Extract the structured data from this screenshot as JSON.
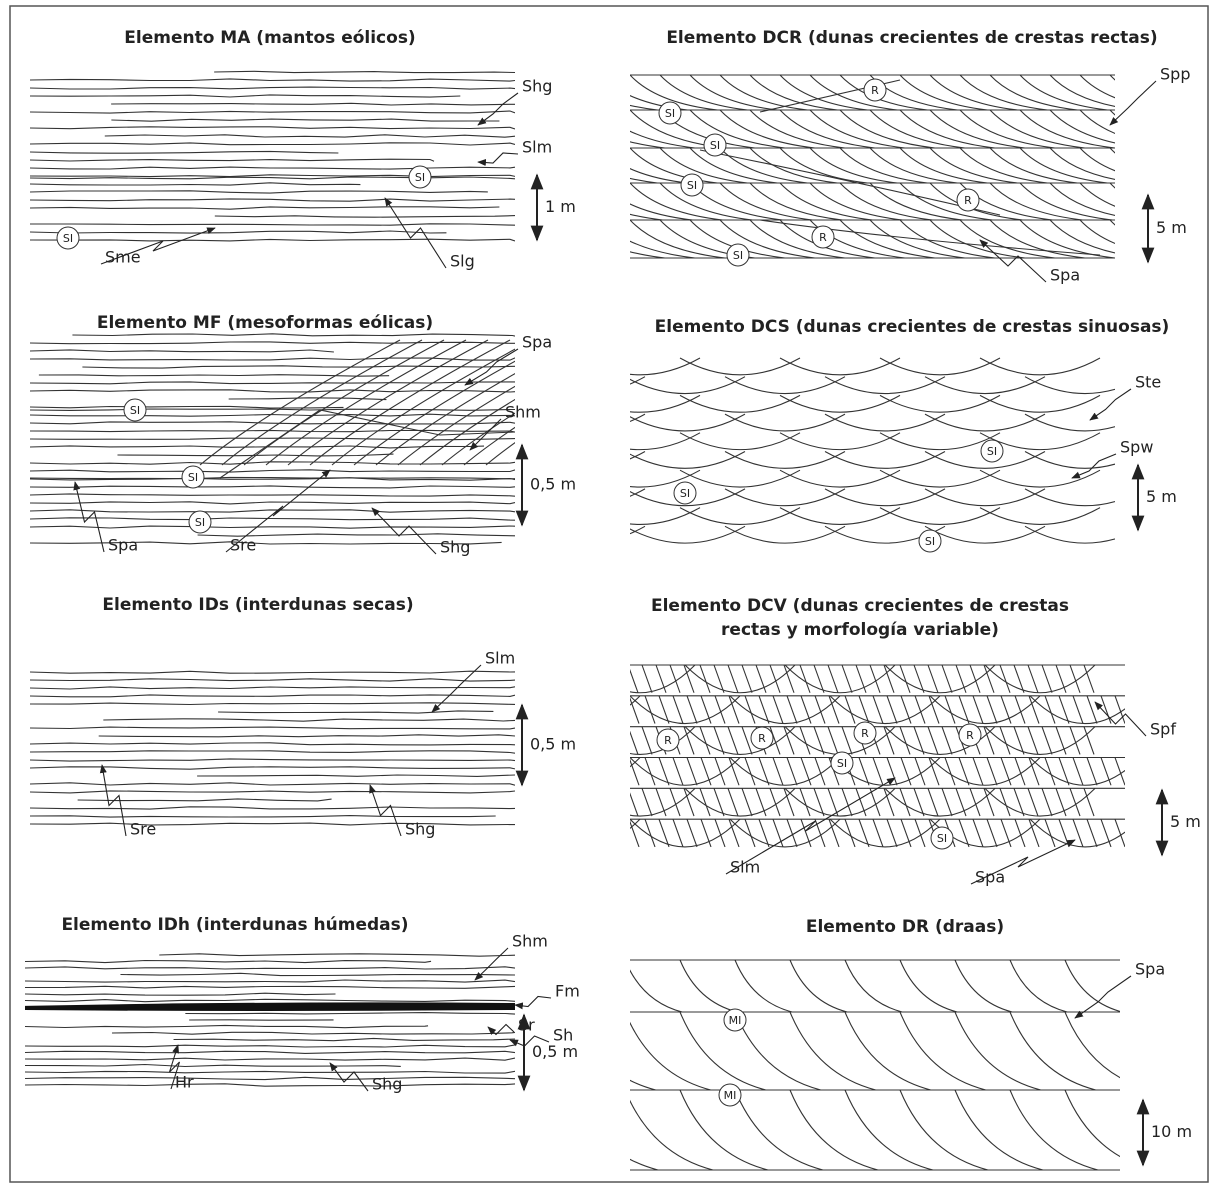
{
  "panels": [
    {
      "title": "Elemento MA (mantos eólicos)",
      "labels": [
        "Shg",
        "Slm",
        "Slg",
        "Sme"
      ],
      "scale": "1 m",
      "circles": [
        "SI",
        "SI"
      ]
    },
    {
      "title": "Elemento DCR (dunas crecientes de crestas rectas)",
      "labels": [
        "Spp",
        "Spa"
      ],
      "scale": "5 m",
      "circles": [
        "R",
        "SI",
        "SI",
        "SI",
        "R",
        "R",
        "SI"
      ]
    },
    {
      "title": "Elemento MF (mesoformas eólicas)",
      "labels": [
        "Spa",
        "Shm",
        "Spa",
        "Sre",
        "Shg"
      ],
      "scale": "0,5 m",
      "circles": [
        "SI",
        "SI",
        "SI"
      ]
    },
    {
      "title": "Elemento DCS (dunas crecientes de crestas sinuosas)",
      "labels": [
        "Ste",
        "Spw"
      ],
      "scale": "5 m",
      "circles": [
        "SI",
        "SI",
        "SI"
      ]
    },
    {
      "title": "Elemento IDs (interdunas secas)",
      "labels": [
        "Slm",
        "Sre",
        "Shg"
      ],
      "scale": "0,5 m",
      "circles": []
    },
    {
      "title": [
        "Elemento DCV (dunas crecientes de crestas",
        "rectas y morfología variable)"
      ],
      "labels": [
        "Spf",
        "Slm",
        "Spa"
      ],
      "scale": "5 m",
      "circles": [
        "R",
        "R",
        "R",
        "R",
        "SI",
        "SI"
      ]
    },
    {
      "title": "Elemento IDh (interdunas húmedas)",
      "labels": [
        "Shm",
        "Fm",
        "Sr",
        "Sh",
        "Hr",
        "Shg"
      ],
      "scale": "0,5 m",
      "circles": []
    },
    {
      "title": "Elemento DR (draas)",
      "labels": [
        "Spa"
      ],
      "scale": "10 m",
      "circles": [
        "MI",
        "MI"
      ]
    }
  ]
}
